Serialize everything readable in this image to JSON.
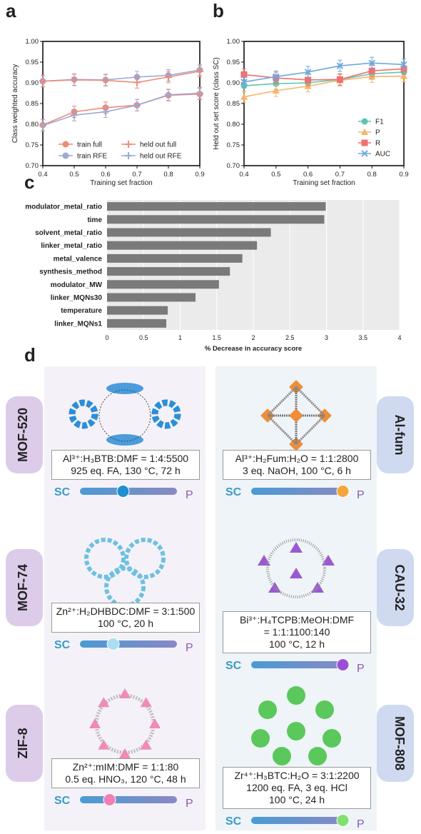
{
  "panel_labels": {
    "a": "a",
    "b": "b",
    "c": "c",
    "d": "d"
  },
  "chart_data": [
    {
      "type": "line",
      "xlabel": "Training set fraction",
      "ylabel": "Class weighted accuracy",
      "xlim": [
        0.4,
        0.9
      ],
      "ylim": [
        0.7,
        1.0
      ],
      "x_ticks": [
        "0.4",
        "0.5",
        "0.6",
        "0.7",
        "0.8",
        "0.9"
      ],
      "y_ticks": [
        "0.70",
        "0.75",
        "0.80",
        "0.85",
        "0.90",
        "0.95",
        "1.00"
      ],
      "x": [
        0.4,
        0.5,
        0.6,
        0.7,
        0.8,
        0.9
      ],
      "grid": false,
      "legend_position": "bottom",
      "series": [
        {
          "name": "train full",
          "color": "#ef8a78",
          "marker": "circle",
          "values": [
            0.798,
            0.83,
            0.84,
            0.846,
            0.87,
            0.873
          ]
        },
        {
          "name": "train RFE",
          "color": "#9ea7d5",
          "marker": "circle",
          "values": [
            0.904,
            0.908,
            0.907,
            0.914,
            0.918,
            0.931
          ]
        },
        {
          "name": "held out full",
          "color": "#ef8a78",
          "marker": "plus",
          "values": [
            0.904,
            0.907,
            0.906,
            0.901,
            0.914,
            0.928
          ]
        },
        {
          "name": "held out RFE",
          "color": "#9ea7d5",
          "marker": "plus",
          "values": [
            0.797,
            0.822,
            0.83,
            0.846,
            0.871,
            0.875
          ]
        }
      ]
    },
    {
      "type": "line",
      "xlabel": "Training set fraction",
      "ylabel": "Held out set score (class SC)",
      "xlim": [
        0.4,
        0.9
      ],
      "ylim": [
        0.7,
        1.0
      ],
      "x_ticks": [
        "0.4",
        "0.5",
        "0.6",
        "0.7",
        "0.8",
        "0.9"
      ],
      "y_ticks": [
        "0.70",
        "0.75",
        "0.80",
        "0.85",
        "0.90",
        "0.95",
        "1.00"
      ],
      "x": [
        0.4,
        0.5,
        0.6,
        0.7,
        0.8,
        0.9
      ],
      "grid": false,
      "legend_position": "bottom-right",
      "series": [
        {
          "name": "F1",
          "color": "#5dc6b0",
          "marker": "circle",
          "values": [
            0.893,
            0.898,
            0.9,
            0.908,
            0.922,
            0.926
          ]
        },
        {
          "name": "P",
          "color": "#f7b46a",
          "marker": "triangle",
          "values": [
            0.866,
            0.881,
            0.892,
            0.906,
            0.915,
            0.916
          ]
        },
        {
          "name": "R",
          "color": "#f07070",
          "marker": "square",
          "values": [
            0.92,
            0.912,
            0.907,
            0.908,
            0.929,
            0.934
          ]
        },
        {
          "name": "AUC",
          "color": "#6fa8dc",
          "marker": "x",
          "values": [
            0.902,
            0.915,
            0.926,
            0.941,
            0.948,
            0.944
          ]
        }
      ]
    },
    {
      "type": "bar",
      "orientation": "horizontal",
      "xlabel": "% Decrease in accuracy score",
      "xlim": [
        0,
        4
      ],
      "x_ticks": [
        "0",
        "0.5",
        "1",
        "1.5",
        "2",
        "2.5",
        "3",
        "3.5",
        "4"
      ],
      "categories": [
        "modulator_metal_ratio",
        "time",
        "solvent_metal_ratio",
        "linker_metal_ratio",
        "metal_valence",
        "synthesis_method",
        "modulator_MW",
        "linker_MQNs30",
        "temperature",
        "linker_MQNs1"
      ],
      "values": [
        2.99,
        2.97,
        2.24,
        2.05,
        1.85,
        1.68,
        1.53,
        1.21,
        0.83,
        0.81
      ],
      "color": "#7a7a7a",
      "background": "#ebebeb"
    }
  ],
  "panel_d": {
    "sc_label": "SC",
    "p_label": "P",
    "bar_gradient": [
      "#4a9bd4",
      "#8a88c4"
    ],
    "left": [
      {
        "name": "MOF-520",
        "line1": "Al³⁺:H₃BTB:DMF = 1:4:5500",
        "line2": "925 eq. FA, 130 °C, 72 h",
        "line3": "",
        "slider": 0.44,
        "knob_color": "#1f8fd0",
        "structure_color": "#2b8ed8"
      },
      {
        "name": "MOF-74",
        "line1": "Zn²⁺:H₂DHBDC:DMF = 3:1:500",
        "line2": "100 °C, 20 h",
        "line3": "",
        "slider": 0.33,
        "knob_color": "#a9def3",
        "structure_color": "#6fc0e0"
      },
      {
        "name": "ZIF-8",
        "line1": "Zn²⁺:mIM:DMF = 1:1:80",
        "line2": "0.5 eq. HNO₃, 120 °C, 48 h",
        "line3": "",
        "slider": 0.29,
        "knob_color": "#f07fb5",
        "structure_color": "#f08ab8"
      }
    ],
    "right": [
      {
        "name": "Al-fum",
        "line1": "Al³⁺:H₂Fum:H₂O = 1:1:2800",
        "line2": "3 eq. NaOH, 100 °C, 6 h",
        "line3": "",
        "slider": 0.98,
        "knob_color": "#f4a63a",
        "structure_color": "#ef8d3a"
      },
      {
        "name": "CAU-32",
        "line1": "Bi³⁺:H₄TCPB:MeOH:DMF",
        "line2": "= 1:1:1100:140",
        "line3": "100 °C, 12 h",
        "slider": 0.98,
        "knob_color": "#9c4fd6",
        "structure_color": "#9b59d0"
      },
      {
        "name": "MOF-808",
        "line1": "Zr⁴⁺:H₃BTC:H₂O = 3:1:2200",
        "line2": "1200 eq. FA, 3 eq. HCl",
        "line3": "100 °C, 24 h",
        "slider": 0.98,
        "knob_color": "#82e070",
        "structure_color": "#3fbf3f"
      }
    ]
  }
}
